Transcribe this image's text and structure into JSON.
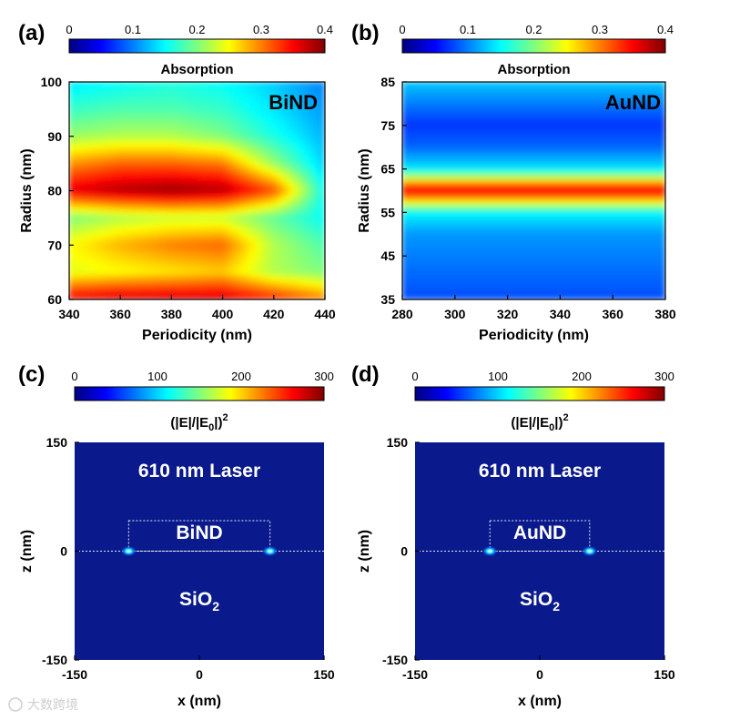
{
  "colors": {
    "jet": [
      "#00007f",
      "#0000ff",
      "#007fff",
      "#00ffff",
      "#7fff7f",
      "#ffff00",
      "#ff7f00",
      "#ff0000",
      "#7f0000"
    ],
    "field_background": "#0a1a8c"
  },
  "watermark": "大数跨境",
  "chart_data": [
    {
      "panel": "(a)",
      "type": "heatmap",
      "colorbar_label": "Absorption",
      "colorbar_range": [
        0,
        0.4
      ],
      "colorbar_ticks": [
        "0",
        "0.1",
        "0.2",
        "0.3",
        "0.4"
      ],
      "in_plot_label": "BiND",
      "xlabel": "Periodicity (nm)",
      "ylabel": "Radius (nm)",
      "xlim": [
        340,
        440
      ],
      "ylim": [
        60,
        100
      ],
      "xticks": [
        "340",
        "360",
        "380",
        "400",
        "420",
        "440"
      ],
      "yticks": [
        "60",
        "70",
        "80",
        "90",
        "100"
      ],
      "x": [
        340,
        360,
        380,
        400,
        420,
        440
      ],
      "y": [
        60,
        65,
        70,
        75,
        80,
        85,
        90,
        95,
        100
      ],
      "z": [
        [
          0.36,
          0.37,
          0.37,
          0.37,
          0.34,
          0.3
        ],
        [
          0.24,
          0.25,
          0.26,
          0.27,
          0.22,
          0.2
        ],
        [
          0.25,
          0.28,
          0.3,
          0.31,
          0.22,
          0.18
        ],
        [
          0.2,
          0.22,
          0.23,
          0.23,
          0.19,
          0.15
        ],
        [
          0.36,
          0.38,
          0.39,
          0.38,
          0.32,
          0.15
        ],
        [
          0.29,
          0.31,
          0.31,
          0.3,
          0.21,
          0.13
        ],
        [
          0.21,
          0.22,
          0.22,
          0.2,
          0.16,
          0.12
        ],
        [
          0.17,
          0.18,
          0.18,
          0.17,
          0.14,
          0.11
        ],
        [
          0.14,
          0.15,
          0.16,
          0.15,
          0.13,
          0.1
        ]
      ]
    },
    {
      "panel": "(b)",
      "type": "heatmap",
      "colorbar_label": "Absorption",
      "colorbar_range": [
        0,
        0.4
      ],
      "colorbar_ticks": [
        "0",
        "0.1",
        "0.2",
        "0.3",
        "0.4"
      ],
      "in_plot_label": "AuND",
      "xlabel": "Periodicity (nm)",
      "ylabel": "Radius (nm)",
      "xlim": [
        280,
        380
      ],
      "ylim": [
        35,
        85
      ],
      "xticks": [
        "280",
        "300",
        "320",
        "340",
        "360",
        "380"
      ],
      "yticks": [
        "35",
        "45",
        "55",
        "65",
        "75",
        "85"
      ],
      "x": [
        280,
        380
      ],
      "y": [
        35,
        40,
        45,
        50,
        55,
        57,
        59,
        60,
        61,
        63,
        65,
        70,
        75,
        80,
        85
      ],
      "z": [
        [
          0.08,
          0.08
        ],
        [
          0.09,
          0.09
        ],
        [
          0.1,
          0.1
        ],
        [
          0.11,
          0.11
        ],
        [
          0.15,
          0.15
        ],
        [
          0.24,
          0.24
        ],
        [
          0.33,
          0.33
        ],
        [
          0.35,
          0.35
        ],
        [
          0.33,
          0.33
        ],
        [
          0.22,
          0.22
        ],
        [
          0.14,
          0.14
        ],
        [
          0.09,
          0.09
        ],
        [
          0.07,
          0.07
        ],
        [
          0.1,
          0.1
        ],
        [
          0.13,
          0.13
        ]
      ]
    },
    {
      "panel": "(c)",
      "type": "heatmap",
      "colorbar_label_base": "(|E|/|E",
      "colorbar_label_sub": "0",
      "colorbar_label_close": "|)",
      "colorbar_label_sup": "2",
      "colorbar_range": [
        0,
        300
      ],
      "colorbar_ticks": [
        "0",
        "100",
        "200",
        "300"
      ],
      "title_label": "610 nm Laser",
      "particle_label": "BiND",
      "substrate_label_base": "SiO",
      "substrate_label_sub": "2",
      "xlabel": "x (nm)",
      "ylabel": "z (nm)",
      "xlim": [
        -150,
        150
      ],
      "ylim": [
        -150,
        150
      ],
      "xticks": [
        "-150",
        "0",
        "150"
      ],
      "yticks": [
        "-150",
        "0",
        "150"
      ],
      "particle_box": {
        "x": [
          -85,
          85
        ],
        "z": [
          0,
          42
        ]
      },
      "hotspots": [
        {
          "x": -85,
          "z": 0
        },
        {
          "x": 85,
          "z": 0
        }
      ]
    },
    {
      "panel": "(d)",
      "type": "heatmap",
      "colorbar_label_base": "(|E|/|E",
      "colorbar_label_sub": "0",
      "colorbar_label_close": "|)",
      "colorbar_label_sup": "2",
      "colorbar_range": [
        0,
        300
      ],
      "colorbar_ticks": [
        "0",
        "100",
        "200",
        "300"
      ],
      "title_label": "610 nm Laser",
      "particle_label": "AuND",
      "substrate_label_base": "SiO",
      "substrate_label_sub": "2",
      "xlabel": "x (nm)",
      "ylabel": "z (nm)",
      "xlim": [
        -150,
        150
      ],
      "ylim": [
        -150,
        150
      ],
      "xticks": [
        "-150",
        "0",
        "150"
      ],
      "yticks": [
        "-150",
        "0",
        "150"
      ],
      "particle_box": {
        "x": [
          -60,
          60
        ],
        "z": [
          0,
          42
        ]
      },
      "hotspots": [
        {
          "x": -60,
          "z": 0
        },
        {
          "x": 60,
          "z": 0
        }
      ]
    }
  ]
}
